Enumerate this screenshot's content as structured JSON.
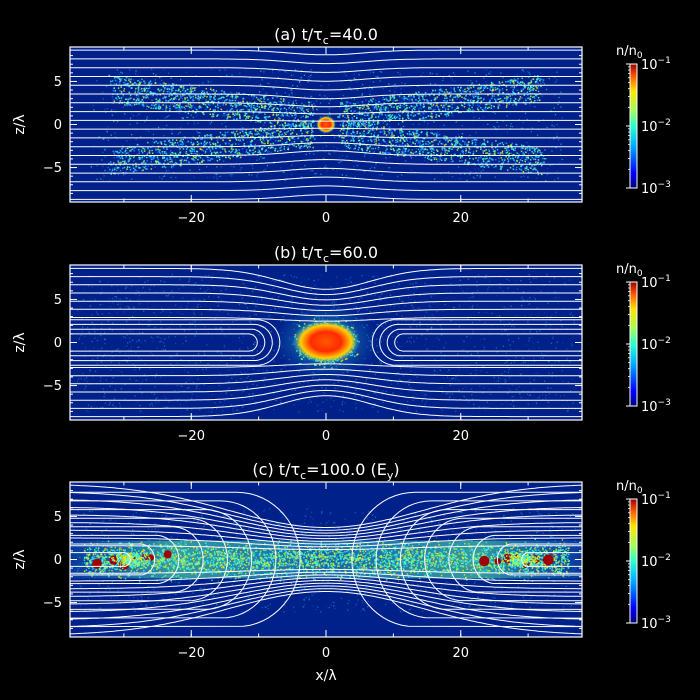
{
  "chart_data": [
    {
      "type": "heatmap",
      "panel": "a",
      "title_prefix": "(a) t/",
      "title_symbol": "τ",
      "title_sub": "c",
      "title_suffix": "=40.0",
      "time": 40.0,
      "xlabel": "",
      "ylabel": "z/λ",
      "xlim": [
        -38,
        38
      ],
      "ylim": [
        -9,
        9
      ],
      "xticks": [
        -20,
        0,
        20
      ],
      "yticks": [
        -5,
        0,
        5
      ],
      "colorbar": {
        "label": "n/n",
        "label_sub": "0",
        "scale": "log",
        "range": [
          0.001,
          0.1
        ],
        "ticks": [
          {
            "base": "10",
            "exp": "-1"
          },
          {
            "base": "10",
            "exp": "-2"
          },
          {
            "base": "10",
            "exp": "-3"
          }
        ]
      },
      "field_lines": "white"
    },
    {
      "type": "heatmap",
      "panel": "b",
      "title_prefix": "(b) t/",
      "title_symbol": "τ",
      "title_sub": "c",
      "title_suffix": "=60.0",
      "time": 60.0,
      "xlabel": "",
      "ylabel": "z/λ",
      "xlim": [
        -38,
        38
      ],
      "ylim": [
        -9,
        9
      ],
      "xticks": [
        -20,
        0,
        20
      ],
      "yticks": [
        -5,
        0,
        5
      ],
      "colorbar": {
        "label": "n/n",
        "label_sub": "0",
        "scale": "log",
        "range": [
          0.001,
          0.1
        ],
        "ticks": [
          {
            "base": "10",
            "exp": "-1"
          },
          {
            "base": "10",
            "exp": "-2"
          },
          {
            "base": "10",
            "exp": "-3"
          }
        ]
      },
      "field_lines": "white"
    },
    {
      "type": "heatmap",
      "panel": "c",
      "title_prefix": "(c) t/",
      "title_symbol": "τ",
      "title_sub": "c",
      "title_suffix": "=100.0 (E",
      "title_sub2": "y",
      "title_end": ")",
      "time": 100.0,
      "xlabel": "x/λ",
      "ylabel": "z/λ",
      "xlim": [
        -38,
        38
      ],
      "ylim": [
        -9,
        9
      ],
      "xticks": [
        -20,
        0,
        20
      ],
      "yticks": [
        -5,
        0,
        5
      ],
      "colorbar": {
        "label": "n/n",
        "label_sub": "0",
        "scale": "log",
        "range": [
          0.001,
          0.1
        ],
        "ticks": [
          {
            "base": "10",
            "exp": "-1"
          },
          {
            "base": "10",
            "exp": "-2"
          },
          {
            "base": "10",
            "exp": "-3"
          }
        ]
      },
      "field_lines": "white"
    }
  ],
  "colors": {
    "background": "#000000",
    "field_background": "#00208a",
    "lines": "#ffffff"
  }
}
